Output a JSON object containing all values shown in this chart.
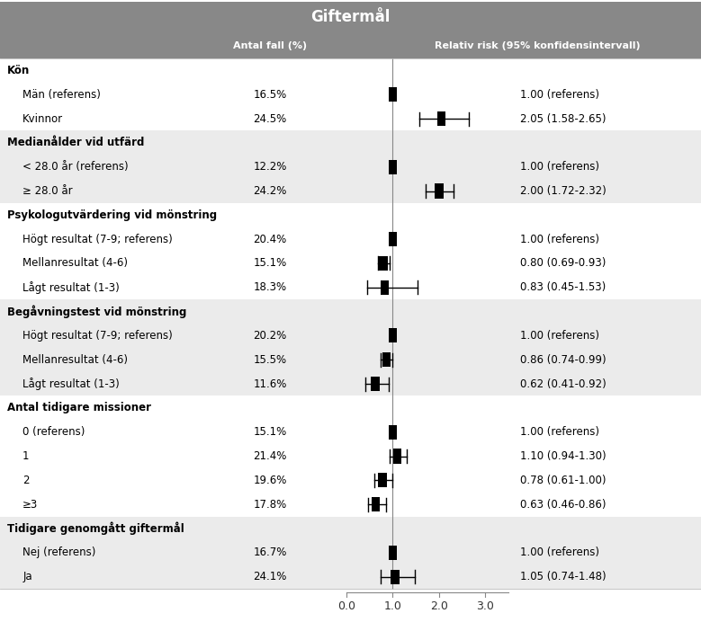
{
  "title": "Giftermål",
  "col1_header": "Antal fall (%)",
  "col2_header": "Relativ risk (95% konfidensintervall)",
  "rows": [
    {
      "label": "Kön",
      "pct": null,
      "rr": null,
      "lo": null,
      "hi": null,
      "rr_text": null,
      "is_header": true,
      "bg": "white"
    },
    {
      "label": "Män (referens)",
      "pct": "16.5%",
      "rr": 1.0,
      "lo": 1.0,
      "hi": 1.0,
      "rr_text": "1.00 (referens)",
      "is_header": false,
      "bg": "white"
    },
    {
      "label": "Kvinnor",
      "pct": "24.5%",
      "rr": 2.05,
      "lo": 1.58,
      "hi": 2.65,
      "rr_text": "2.05 (1.58-2.65)",
      "is_header": false,
      "bg": "white"
    },
    {
      "label": "Medianålder vid utfärd",
      "pct": null,
      "rr": null,
      "lo": null,
      "hi": null,
      "rr_text": null,
      "is_header": true,
      "bg": "#ebebeb"
    },
    {
      "label": "< 28.0 år (referens)",
      "pct": "12.2%",
      "rr": 1.0,
      "lo": 1.0,
      "hi": 1.0,
      "rr_text": "1.00 (referens)",
      "is_header": false,
      "bg": "#ebebeb"
    },
    {
      "label": "≥ 28.0 år",
      "pct": "24.2%",
      "rr": 2.0,
      "lo": 1.72,
      "hi": 2.32,
      "rr_text": "2.00 (1.72-2.32)",
      "is_header": false,
      "bg": "#ebebeb"
    },
    {
      "label": "Psykologutvärdering vid mönstring",
      "pct": null,
      "rr": null,
      "lo": null,
      "hi": null,
      "rr_text": null,
      "is_header": true,
      "bg": "white"
    },
    {
      "label": "Högt resultat (7-9; referens)",
      "pct": "20.4%",
      "rr": 1.0,
      "lo": 1.0,
      "hi": 1.0,
      "rr_text": "1.00 (referens)",
      "is_header": false,
      "bg": "white"
    },
    {
      "label": "Mellanresultat (4-6)",
      "pct": "15.1%",
      "rr": 0.8,
      "lo": 0.69,
      "hi": 0.93,
      "rr_text": "0.80 (0.69-0.93)",
      "is_header": false,
      "bg": "white"
    },
    {
      "label": "Lågt resultat (1-3)",
      "pct": "18.3%",
      "rr": 0.83,
      "lo": 0.45,
      "hi": 1.53,
      "rr_text": "0.83 (0.45-1.53)",
      "is_header": false,
      "bg": "white"
    },
    {
      "label": "Begåvningstest vid mönstring",
      "pct": null,
      "rr": null,
      "lo": null,
      "hi": null,
      "rr_text": null,
      "is_header": true,
      "bg": "#ebebeb"
    },
    {
      "label": "Högt resultat (7-9; referens)",
      "pct": "20.2%",
      "rr": 1.0,
      "lo": 1.0,
      "hi": 1.0,
      "rr_text": "1.00 (referens)",
      "is_header": false,
      "bg": "#ebebeb"
    },
    {
      "label": "Mellanresultat (4-6)",
      "pct": "15.5%",
      "rr": 0.86,
      "lo": 0.74,
      "hi": 0.99,
      "rr_text": "0.86 (0.74-0.99)",
      "is_header": false,
      "bg": "#ebebeb"
    },
    {
      "label": "Lågt resultat (1-3)",
      "pct": "11.6%",
      "rr": 0.62,
      "lo": 0.41,
      "hi": 0.92,
      "rr_text": "0.62 (0.41-0.92)",
      "is_header": false,
      "bg": "#ebebeb"
    },
    {
      "label": "Antal tidigare missioner",
      "pct": null,
      "rr": null,
      "lo": null,
      "hi": null,
      "rr_text": null,
      "is_header": true,
      "bg": "white"
    },
    {
      "label": "0 (referens)",
      "pct": "15.1%",
      "rr": 1.0,
      "lo": 1.0,
      "hi": 1.0,
      "rr_text": "1.00 (referens)",
      "is_header": false,
      "bg": "white"
    },
    {
      "label": "1",
      "pct": "21.4%",
      "rr": 1.1,
      "lo": 0.94,
      "hi": 1.3,
      "rr_text": "1.10 (0.94-1.30)",
      "is_header": false,
      "bg": "white"
    },
    {
      "label": "2",
      "pct": "19.6%",
      "rr": 0.78,
      "lo": 0.61,
      "hi": 1.0,
      "rr_text": "0.78 (0.61-1.00)",
      "is_header": false,
      "bg": "white"
    },
    {
      "label": "≥3",
      "pct": "17.8%",
      "rr": 0.63,
      "lo": 0.46,
      "hi": 0.86,
      "rr_text": "0.63 (0.46-0.86)",
      "is_header": false,
      "bg": "white"
    },
    {
      "label": "Tidigare genomgått giftermål",
      "pct": null,
      "rr": null,
      "lo": null,
      "hi": null,
      "rr_text": null,
      "is_header": true,
      "bg": "#ebebeb"
    },
    {
      "label": "Nej (referens)",
      "pct": "16.7%",
      "rr": 1.0,
      "lo": 1.0,
      "hi": 1.0,
      "rr_text": "1.00 (referens)",
      "is_header": false,
      "bg": "#ebebeb"
    },
    {
      "label": "Ja",
      "pct": "24.1%",
      "rr": 1.05,
      "lo": 0.74,
      "hi": 1.48,
      "rr_text": "1.05 (0.74-1.48)",
      "is_header": false,
      "bg": "#ebebeb"
    }
  ],
  "x_min": 0.0,
  "x_max": 3.5,
  "x_ticks": [
    0.0,
    1.0,
    2.0,
    3.0
  ],
  "ref_line": 1.0,
  "title_bg": "#888888",
  "col_header_bg": "#888888",
  "title_color": "white",
  "header_label_color": "#000000",
  "label_color": "#000000",
  "pct_color": "#000000",
  "rr_color": "#000000",
  "marker_color": "#000000",
  "ci_color": "#000000"
}
